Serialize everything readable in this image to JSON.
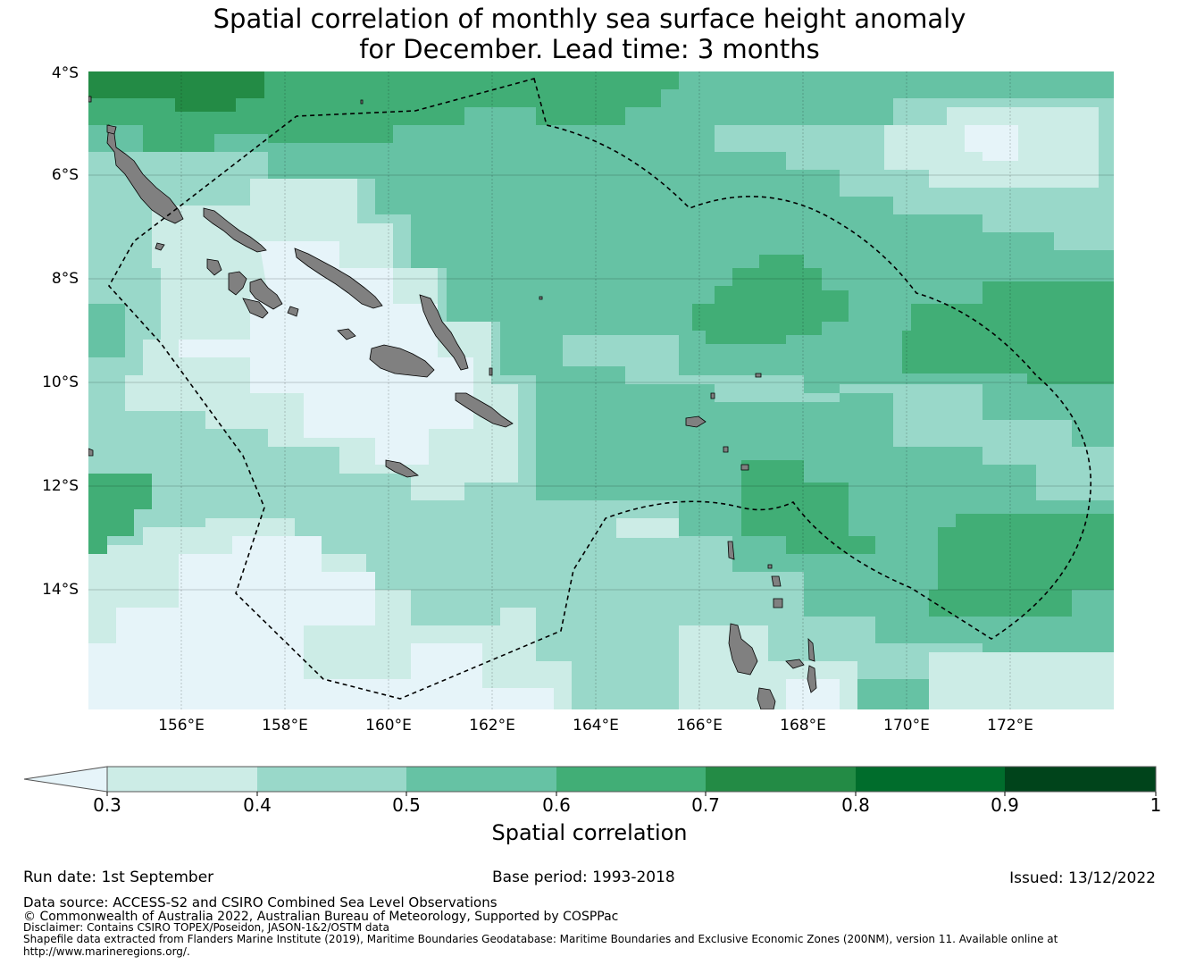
{
  "title": {
    "line1": "Spatial correlation of monthly sea surface height anomaly",
    "line2": "for December. Lead time: 3 months"
  },
  "map": {
    "lat_labels": [
      "4°S",
      "6°S",
      "8°S",
      "10°S",
      "12°S",
      "14°S"
    ],
    "lon_labels": [
      "156°E",
      "158°E",
      "160°E",
      "162°E",
      "164°E",
      "166°E",
      "168°E",
      "170°E",
      "172°E"
    ],
    "extent": {
      "lon_min": 154.2,
      "lon_max": 174,
      "lat_min": -16.3,
      "lat_max": -4
    },
    "land_color": "#808080",
    "eez_boundary_style": "dashed black"
  },
  "colorbar": {
    "ticks": [
      "0.3",
      "0.4",
      "0.5",
      "0.6",
      "0.7",
      "0.8",
      "0.9",
      "1"
    ],
    "under_color": "#e6f4f9",
    "colors": [
      "#ccece6",
      "#99d8c9",
      "#66c2a4",
      "#41ae76",
      "#238b45",
      "#006d2c",
      "#00441b"
    ],
    "label": "Spatial correlation"
  },
  "footer": {
    "run_date": "Run date: 1st September",
    "base_period": "Base period: 1993-2018",
    "issued": "Issued: 13/12/2022",
    "data_source": "Data source: ACCESS-S2 and CSIRO Combined Sea Level Observations",
    "copyright": "© Commonwealth of Australia 2022, Australian Bureau of Meteorology, Supported by COSPPac",
    "disclaimer": "Disclaimer: Contains CSIRO TOPEX/Poseidon, JASON-1&2/OSTM data",
    "shapefile": "Shapefile data extracted from Flanders Marine Institute (2019), Maritime Boundaries Geodatabase: Maritime Boundaries and Exclusive Economic Zones (200NM), version 11. Available online at",
    "url": "http://www.marineregions.org/."
  }
}
